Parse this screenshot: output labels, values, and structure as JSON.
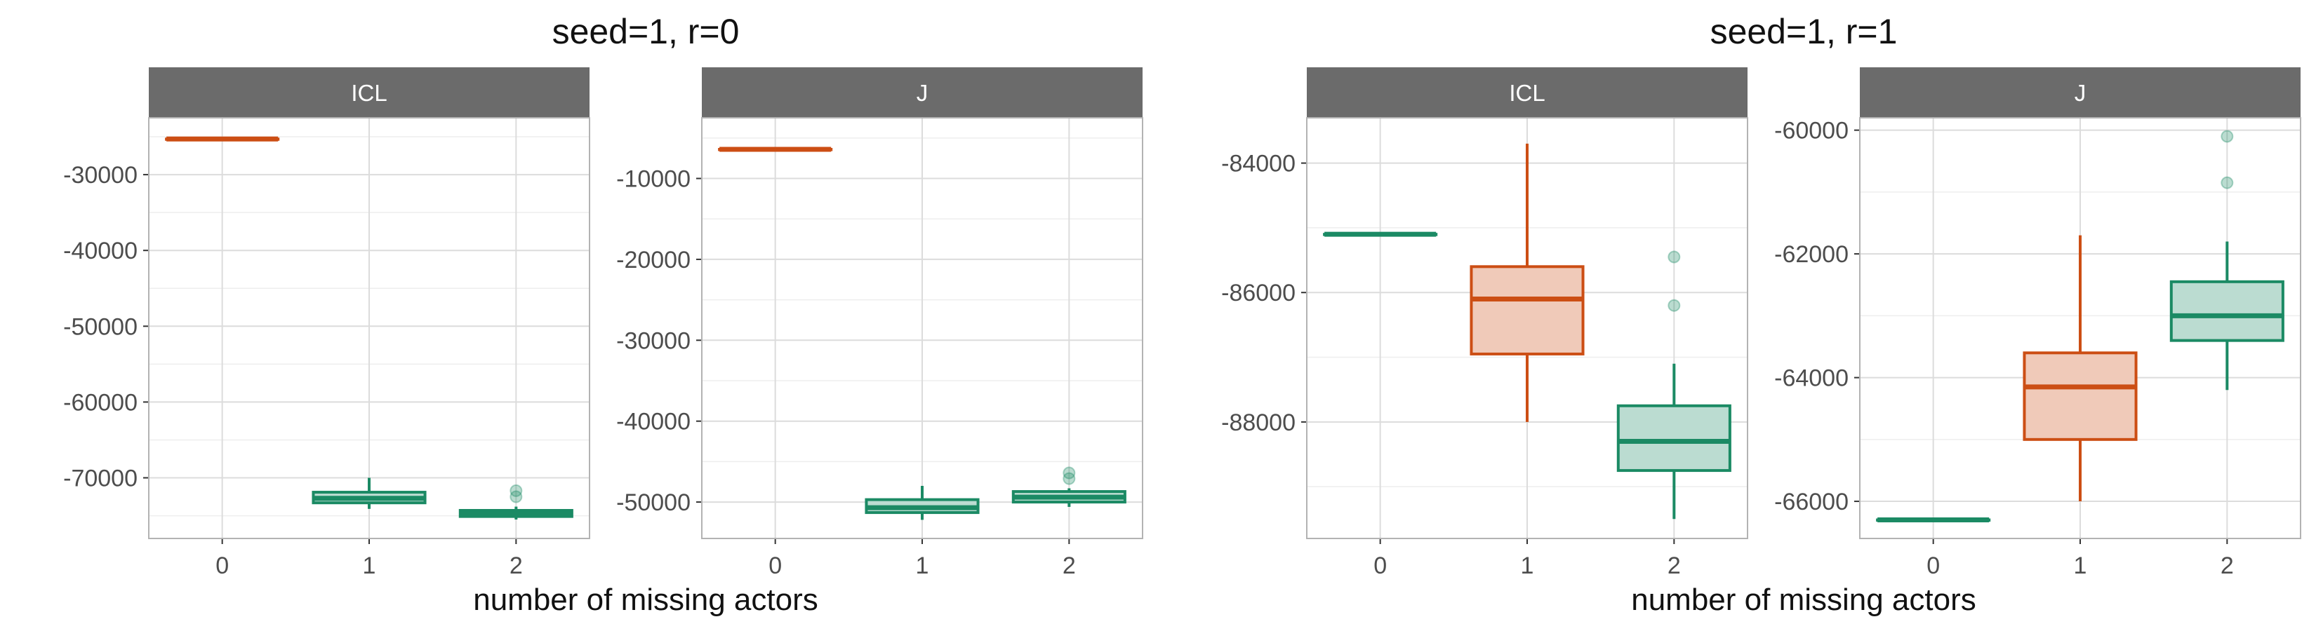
{
  "chart_data": [
    {
      "type": "boxplot",
      "title": "seed=1, r=0",
      "xlabel": "number of missing actors",
      "colors": {
        "0": "#cc4e14",
        "1": "#1b8a64",
        "2": "#1b8a64"
      },
      "legend": "none",
      "grid": true,
      "panels": [
        {
          "strip": "ICL",
          "categories": [
            "0",
            "1",
            "2"
          ],
          "ylim": [
            -78000,
            -22500
          ],
          "yticks": [
            -30000,
            -40000,
            -50000,
            -60000,
            -70000
          ],
          "ytick_labels": [
            "-30000",
            "-40000",
            "-50000",
            "-60000",
            "-70000"
          ],
          "boxes": [
            {
              "x": "0",
              "whislo": -25300,
              "q1": -25300,
              "med": -25300,
              "q3": -25300,
              "whishi": -25300,
              "outliers": []
            },
            {
              "x": "1",
              "whislo": -74100,
              "q1": -73300,
              "med": -72700,
              "q3": -71900,
              "whishi": -70000,
              "outliers": []
            },
            {
              "x": "2",
              "whislo": -75500,
              "q1": -75100,
              "med": -74800,
              "q3": -74300,
              "whishi": -73800,
              "outliers": [
                -71700,
                -72500
              ]
            }
          ]
        },
        {
          "strip": "J",
          "categories": [
            "0",
            "1",
            "2"
          ],
          "ylim": [
            -54500,
            -2500
          ],
          "yticks": [
            -10000,
            -20000,
            -30000,
            -40000,
            -50000
          ],
          "ytick_labels": [
            "-10000",
            "-20000",
            "-30000",
            "-40000",
            "-50000"
          ],
          "boxes": [
            {
              "x": "0",
              "whislo": -6400,
              "q1": -6400,
              "med": -6400,
              "q3": -6400,
              "whishi": -6400,
              "outliers": []
            },
            {
              "x": "1",
              "whislo": -52200,
              "q1": -51300,
              "med": -50700,
              "q3": -49700,
              "whishi": -48000,
              "outliers": []
            },
            {
              "x": "2",
              "whislo": -50600,
              "q1": -50000,
              "med": -49400,
              "q3": -48700,
              "whishi": -48300,
              "outliers": [
                -46400,
                -47100
              ]
            }
          ]
        }
      ]
    },
    {
      "type": "boxplot",
      "title": "seed=1, r=1",
      "xlabel": "number of missing actors",
      "colors": {
        "0": "#1b8a64",
        "1": "#cc4e14",
        "2": "#1b8a64"
      },
      "legend": "none",
      "grid": true,
      "panels": [
        {
          "strip": "ICL",
          "categories": [
            "0",
            "1",
            "2"
          ],
          "ylim": [
            -89800,
            -83300
          ],
          "yticks": [
            -84000,
            -86000,
            -88000
          ],
          "ytick_labels": [
            "-84000",
            "-86000",
            "-88000"
          ],
          "boxes": [
            {
              "x": "0",
              "whislo": -85100,
              "q1": -85100,
              "med": -85100,
              "q3": -85100,
              "whishi": -85100,
              "outliers": []
            },
            {
              "x": "1",
              "whislo": -88000,
              "q1": -86950,
              "med": -86100,
              "q3": -85600,
              "whishi": -83700,
              "outliers": []
            },
            {
              "x": "2",
              "whislo": -89500,
              "q1": -88750,
              "med": -88300,
              "q3": -87750,
              "whishi": -87100,
              "outliers": [
                -85450,
                -86200
              ]
            }
          ]
        },
        {
          "strip": "J",
          "categories": [
            "0",
            "1",
            "2"
          ],
          "ylim": [
            -66600,
            -59800
          ],
          "yticks": [
            -60000,
            -62000,
            -64000,
            -66000
          ],
          "ytick_labels": [
            "-60000",
            "-62000",
            "-64000",
            "-66000"
          ],
          "boxes": [
            {
              "x": "0",
              "whislo": -66300,
              "q1": -66300,
              "med": -66300,
              "q3": -66300,
              "whishi": -66300,
              "outliers": []
            },
            {
              "x": "1",
              "whislo": -66000,
              "q1": -65000,
              "med": -64150,
              "q3": -63600,
              "whishi": -61700,
              "outliers": []
            },
            {
              "x": "2",
              "whislo": -64200,
              "q1": -63400,
              "med": -63000,
              "q3": -62450,
              "whishi": -61800,
              "outliers": [
                -60100,
                -60850
              ]
            }
          ]
        }
      ]
    }
  ]
}
